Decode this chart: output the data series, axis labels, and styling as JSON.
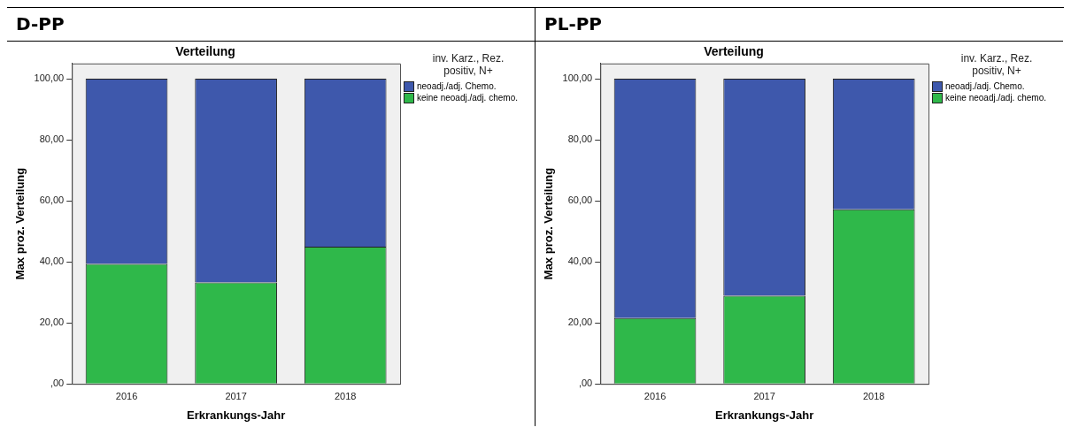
{
  "chart_data": [
    {
      "type": "bar",
      "title": "D-PP",
      "subtitle": "Verteilung",
      "xlabel": "Erkrankungs-Jahr",
      "ylabel": "Max proz. Verteilung",
      "legend_title": "inv. Karz., Rez. positiv, N+",
      "categories": [
        "2016",
        "2017",
        "2018"
      ],
      "stacked": true,
      "legend": "top right",
      "grid": false,
      "ylim": [
        0,
        105
      ],
      "yticks": [
        {
          "value": 0,
          "label": ",00"
        },
        {
          "value": 20,
          "label": "20,00"
        },
        {
          "value": 40,
          "label": "40,00"
        },
        {
          "value": 60,
          "label": "60,00"
        },
        {
          "value": 80,
          "label": "80,00"
        },
        {
          "value": 100,
          "label": "100,00"
        }
      ],
      "series": [
        {
          "name": "keine neoadj./adj. chemo.",
          "color": "#2fb84a",
          "values": [
            39.3,
            33.2,
            45.0
          ]
        },
        {
          "name": "neoadj./adj. Chemo.",
          "color": "#3e58ac",
          "values": [
            60.7,
            66.8,
            55.0
          ]
        }
      ]
    },
    {
      "type": "bar",
      "title": "PL-PP",
      "subtitle": "Verteilung",
      "xlabel": "Erkrankungs-Jahr",
      "ylabel": "Max proz. Verteilung",
      "legend_title": "inv. Karz., Rez. positiv, N+",
      "categories": [
        "2016",
        "2017",
        "2018"
      ],
      "stacked": true,
      "legend": "top right",
      "grid": false,
      "ylim": [
        0,
        105
      ],
      "yticks": [
        {
          "value": 0,
          "label": ",00"
        },
        {
          "value": 20,
          "label": "20,00"
        },
        {
          "value": 40,
          "label": "40,00"
        },
        {
          "value": 60,
          "label": "60,00"
        },
        {
          "value": 80,
          "label": "80,00"
        },
        {
          "value": 100,
          "label": "100,00"
        }
      ],
      "series": [
        {
          "name": "keine neoadj./adj. chemo.",
          "color": "#2fb84a",
          "values": [
            21.6,
            28.9,
            57.2
          ]
        },
        {
          "name": "neoadj./adj. Chemo.",
          "color": "#3e58ac",
          "values": [
            78.4,
            71.1,
            42.8
          ]
        }
      ]
    }
  ]
}
